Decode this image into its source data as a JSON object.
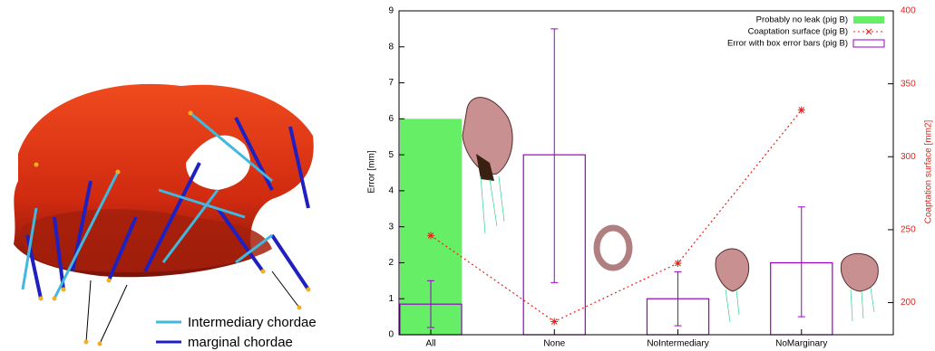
{
  "figure": {
    "legend": [
      "Intermediary chordae",
      "marginal chordae"
    ]
  },
  "chart_data": {
    "type": "bar",
    "categories": [
      "All",
      "None",
      "NoIntermediary",
      "NoMarginary"
    ],
    "ylabel": "Error [mm]",
    "y2label": "Coaptation surface [mm2]",
    "ylim": [
      0,
      9
    ],
    "yticks": [
      0,
      1,
      2,
      3,
      4,
      5,
      6,
      7,
      8,
      9
    ],
    "y2lim": [
      178,
      400
    ],
    "y2ticks": [
      200,
      250,
      300,
      350,
      400
    ],
    "legend": "upper right",
    "series": [
      {
        "name": "Probably no leak (pig B)",
        "type": "bar",
        "color": "#66ee66",
        "values": [
          6,
          null,
          null,
          null
        ]
      },
      {
        "name": "Coaptation surface (pig B)",
        "type": "line",
        "axis": "y2",
        "color": "#e8201a",
        "values": [
          246,
          187,
          227,
          332
        ]
      },
      {
        "name": "Error with box error bars (pig B)",
        "type": "boxerror",
        "color": "#9a00c8",
        "values": [
          0.85,
          5,
          1,
          2
        ],
        "low": [
          0.2,
          1.45,
          0.25,
          0.5
        ],
        "high": [
          1.5,
          8.5,
          1.75,
          3.55
        ]
      }
    ]
  }
}
